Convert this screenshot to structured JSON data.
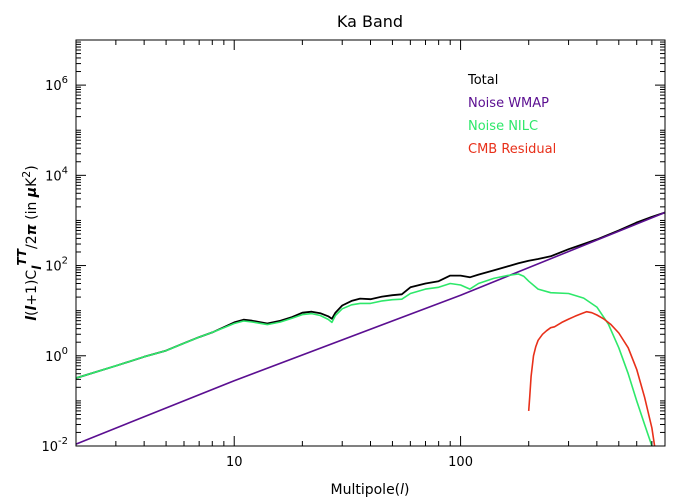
{
  "chart_data": {
    "type": "line",
    "title": "Ka Band",
    "xlabel": "Multipole(l)",
    "ylabel": "l(l+1)C_l^TT/2π (in μK²)",
    "xscale": "log",
    "yscale": "log",
    "xlim": [
      2,
      800
    ],
    "ylim": [
      0.01,
      10000000
    ],
    "xticks": [
      {
        "value": 10,
        "label": "10"
      },
      {
        "value": 100,
        "label": "100"
      }
    ],
    "yticks": [
      {
        "value": 0.01,
        "mant": "10",
        "exp": "-2"
      },
      {
        "value": 1,
        "mant": "10",
        "exp": "0"
      },
      {
        "value": 100,
        "mant": "10",
        "exp": "2"
      },
      {
        "value": 10000,
        "mant": "10",
        "exp": "4"
      },
      {
        "value": 1000000,
        "mant": "10",
        "exp": "6"
      }
    ],
    "legend_position": "top-right",
    "series": [
      {
        "name": "Total",
        "color": "#000000",
        "x": [
          2,
          3,
          4,
          5,
          6,
          7,
          8,
          9,
          10,
          11,
          12,
          14,
          16,
          18,
          20,
          22,
          24,
          26,
          27,
          28,
          30,
          33,
          36,
          40,
          45,
          50,
          55,
          60,
          70,
          80,
          90,
          100,
          110,
          120,
          140,
          160,
          180,
          200,
          220,
          250,
          300,
          350,
          400,
          500,
          600,
          700,
          800
        ],
        "y": [
          0.32,
          0.6,
          0.95,
          1.3,
          1.9,
          2.6,
          3.3,
          4.3,
          5.5,
          6.3,
          6.0,
          5.2,
          6.0,
          7.2,
          9.0,
          9.5,
          8.8,
          7.5,
          6.6,
          9.0,
          13.0,
          16.5,
          18.5,
          18.0,
          20.5,
          22.0,
          23.0,
          33.0,
          40.0,
          45.0,
          60.0,
          60.0,
          55.0,
          63.0,
          78.0,
          95.0,
          112.0,
          128.0,
          140.0,
          160.0,
          230.0,
          300.0,
          380.0,
          600.0,
          900.0,
          1200.0,
          1500.0
        ]
      },
      {
        "name": "Noise WMAP",
        "color": "#5b0f91",
        "x": [
          2,
          10,
          100,
          800
        ],
        "y": [
          0.011,
          0.28,
          22.0,
          1500.0
        ]
      },
      {
        "name": "Noise NILC",
        "color": "#2ee86a",
        "x": [
          2,
          3,
          4,
          5,
          6,
          7,
          8,
          9,
          10,
          11,
          12,
          14,
          16,
          18,
          20,
          22,
          24,
          26,
          27,
          28,
          30,
          33,
          36,
          40,
          45,
          50,
          55,
          60,
          70,
          80,
          90,
          100,
          110,
          120,
          140,
          160,
          180,
          190,
          200,
          220,
          250,
          300,
          350,
          400,
          450,
          500,
          550,
          600,
          650,
          700
        ],
        "y": [
          0.32,
          0.6,
          0.95,
          1.3,
          1.9,
          2.6,
          3.3,
          4.2,
          5.2,
          5.9,
          5.6,
          4.9,
          5.6,
          6.8,
          8.2,
          8.6,
          7.8,
          6.4,
          5.5,
          7.8,
          11.0,
          13.5,
          14.5,
          14.5,
          16.5,
          17.5,
          18.0,
          24.0,
          30.0,
          33.0,
          40.0,
          37.0,
          30.0,
          40.0,
          52.0,
          60.0,
          65.0,
          58.0,
          45.0,
          30.0,
          25.0,
          24.0,
          19.0,
          12.0,
          5.0,
          1.5,
          0.4,
          0.1,
          0.03,
          0.01
        ]
      },
      {
        "name": "CMB Residual",
        "color": "#e8301a",
        "x": [
          200,
          202,
          205,
          210,
          215,
          220,
          230,
          240,
          250,
          260,
          280,
          300,
          320,
          340,
          360,
          380,
          400,
          430,
          460,
          500,
          550,
          600,
          650,
          700,
          720
        ],
        "y": [
          0.06,
          0.12,
          0.35,
          1.0,
          1.6,
          2.2,
          3.0,
          3.6,
          4.2,
          4.4,
          5.5,
          6.5,
          7.5,
          8.5,
          9.5,
          9.0,
          8.0,
          6.5,
          5.0,
          3.2,
          1.5,
          0.5,
          0.12,
          0.025,
          0.01
        ]
      }
    ]
  }
}
